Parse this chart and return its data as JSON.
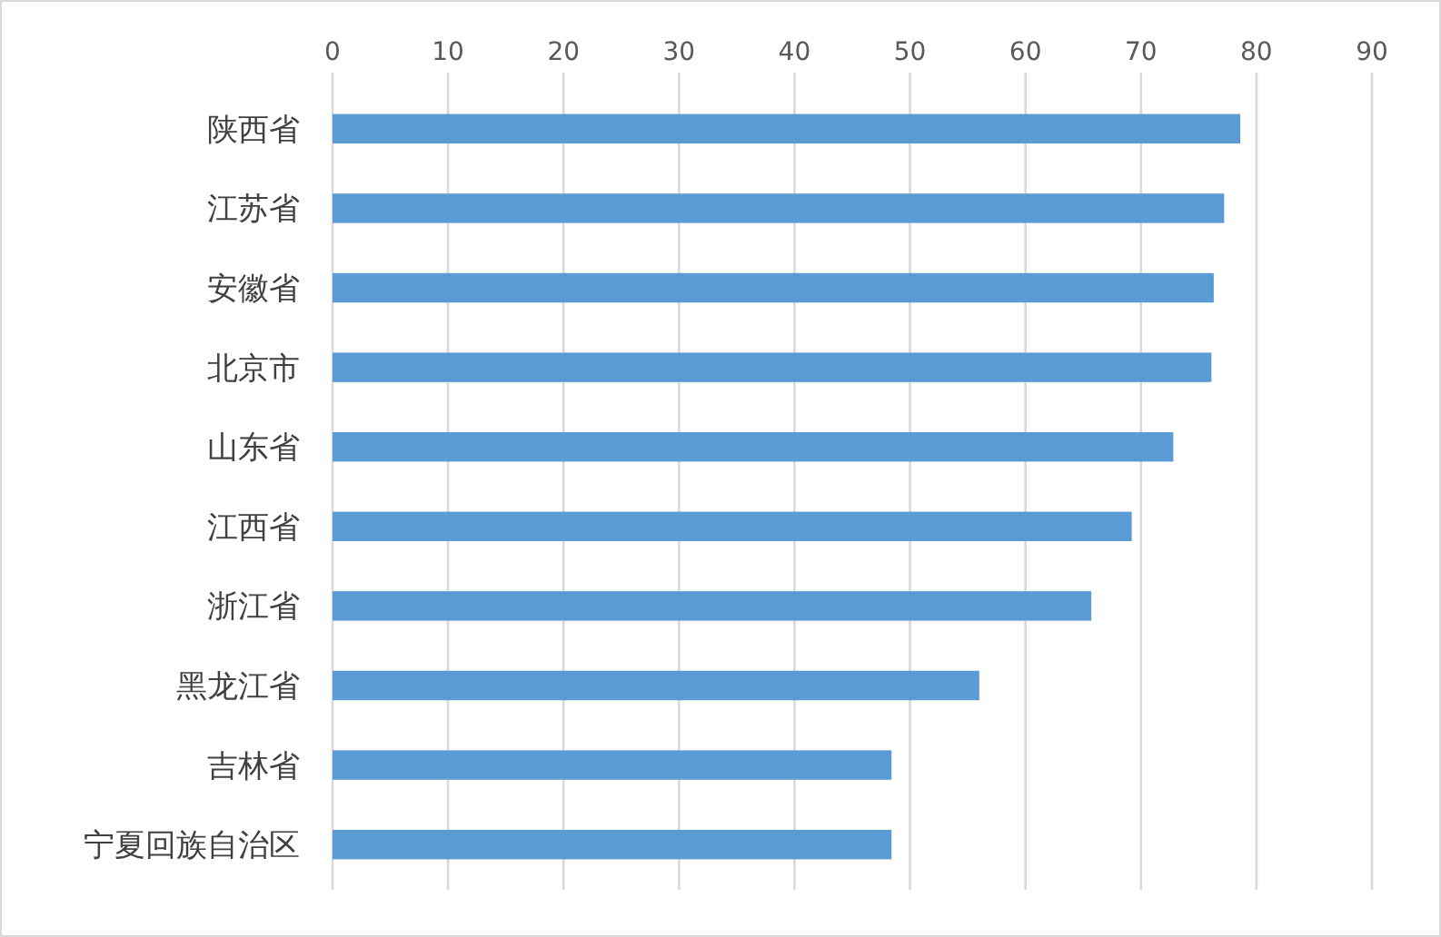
{
  "chart_data": {
    "type": "bar",
    "orientation": "horizontal",
    "categories": [
      "陕西省",
      "江苏省",
      "安徽省",
      "北京市",
      "山东省",
      "江西省",
      "浙江省",
      "黑龙江省",
      "吉林省",
      "宁夏回族自治区"
    ],
    "values": [
      78.6,
      77.2,
      76.3,
      76.1,
      72.8,
      69.2,
      65.7,
      56.0,
      48.4,
      48.4
    ],
    "color": "#5b9bd5",
    "xlim": [
      0,
      90
    ],
    "xticks": [
      0,
      10,
      20,
      30,
      40,
      50,
      60,
      70,
      80,
      90
    ],
    "grid": "x"
  }
}
